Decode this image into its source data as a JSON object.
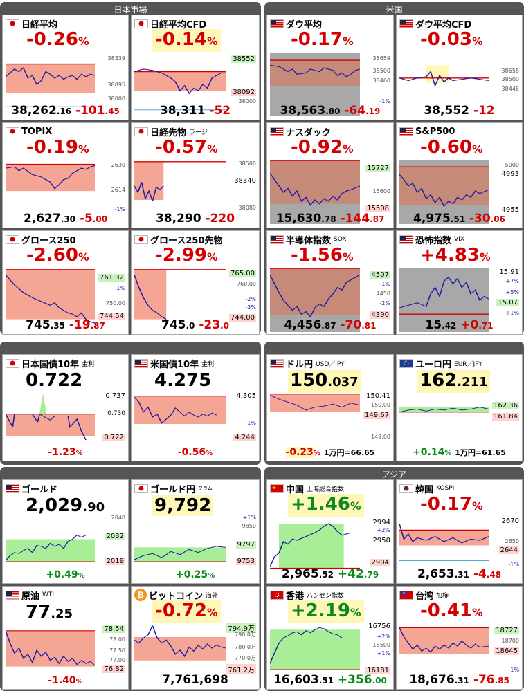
{
  "sections": {
    "japan": "日本市場",
    "us": "米国",
    "asia": "アジア"
  },
  "cards": {
    "nikkei": {
      "name": "日経平均",
      "pct": "-0.26",
      "unit": "%",
      "price_i": "38,262",
      "price_d": ".16",
      "chg_i": "-101",
      "chg_d": ".45",
      "ticks": [
        "38339",
        "38095",
        "38000"
      ]
    },
    "nikkei_cfd": {
      "name": "日経平均CFD",
      "pct": "-0.14",
      "unit": "%",
      "price": "38,311",
      "chg": "-52",
      "ticks": [
        "38552",
        "38092",
        "38000"
      ]
    },
    "dow": {
      "name": "ダウ平均",
      "pct": "-0.17",
      "unit": "%",
      "price_i": "38,563",
      "price_d": ".80",
      "chg_i": "-64",
      "chg_d": ".19",
      "ticks": [
        "38659",
        "38500",
        "38460",
        "-1%"
      ]
    },
    "dow_cfd": {
      "name": "ダウ平均CFD",
      "pct": "-0.03",
      "unit": "%",
      "price": "38,552",
      "chg": "-12",
      "ticks": [
        "38658",
        "38500",
        "38448"
      ]
    },
    "topix": {
      "name": "TOPIX",
      "pct": "-0.19",
      "unit": "%",
      "price_i": "2,627",
      "price_d": ".30",
      "chg_i": "-5",
      "chg_d": ".00",
      "ticks": [
        "2630",
        "2614",
        "-1%"
      ]
    },
    "nikkei_fut": {
      "name": "日経先物",
      "sub": "ラージ",
      "pct": "-0.57",
      "unit": "%",
      "price": "38,290",
      "chg": "-220",
      "ticks": [
        "38500",
        "38340",
        "38080"
      ]
    },
    "nasdaq": {
      "name": "ナスダック",
      "pct": "-0.92",
      "unit": "%",
      "price_i": "15,630",
      "price_d": ".78",
      "chg_i": "-144",
      "chg_d": ".87",
      "ticks": [
        "15727",
        "15600",
        "15508"
      ]
    },
    "sp500": {
      "name": "S&P500",
      "pct": "-0.60",
      "unit": "%",
      "price_i": "4,975",
      "price_d": ".51",
      "chg_i": "-30",
      "chg_d": ".06",
      "ticks": [
        "5000",
        "4993",
        "4955"
      ]
    },
    "growth": {
      "name": "グロース250",
      "pct": "-2.60",
      "unit": "%",
      "price_i": "745",
      "price_d": ".35",
      "chg_i": "-19",
      "chg_d": ".87",
      "ticks": [
        "761.32",
        "-1%",
        "750.00",
        "744.54"
      ]
    },
    "growth_fut": {
      "name": "グロース250先物",
      "pct": "-2.99",
      "unit": "%",
      "price_i": "745",
      "price_d": ".0",
      "chg_i": "-23",
      "chg_d": ".0",
      "ticks": [
        "765.00",
        "760.00",
        "-2%",
        "-3%",
        "744.00"
      ]
    },
    "sox": {
      "name": "半導体指数",
      "sub": "SOX",
      "pct": "-1.56",
      "unit": "%",
      "price_i": "4,456",
      "price_d": ".87",
      "chg_i": "-70",
      "chg_d": ".81",
      "ticks": [
        "4507",
        "-1%",
        "4450",
        "-2%",
        "4390"
      ]
    },
    "vix": {
      "name": "恐怖指数",
      "sub": "VIX",
      "pct": "+4.83",
      "unit": "%",
      "price_i": "15",
      "price_d": ".42",
      "chg_i": "+0",
      "chg_d": ".71",
      "ticks": [
        "15.91",
        "+7%",
        "+5%",
        "15.07",
        "+1%"
      ]
    },
    "jgb": {
      "name": "日本国債10年",
      "sub": "金利",
      "big": "0.722",
      "chg": "-1.23",
      "unit": "%",
      "ticks": [
        "0.737",
        "0.730",
        "0.722"
      ]
    },
    "ust": {
      "name": "米国債10年",
      "sub": "金利",
      "big": "4.275",
      "chg": "-0.56",
      "unit": "%",
      "ticks": [
        "4.305",
        "-1%",
        "4.244"
      ]
    },
    "usdjpy": {
      "name": "ドル円",
      "sub": "USD／JPY",
      "big_i": "150",
      "big_d": ".037",
      "chg": "-0.23",
      "unit": "%",
      "note": "1万円=66.65",
      "ticks": [
        "150.41",
        "150.00",
        "149.67",
        "149.00"
      ]
    },
    "eurjpy": {
      "name": "ユーロ円",
      "sub": "EUR／JPY",
      "big_i": "162",
      "big_d": ".211",
      "chg": "+0.14",
      "unit": "%",
      "note": "1万円=61.65",
      "ticks": [
        "162.36",
        "161.84"
      ]
    },
    "gold": {
      "name": "ゴールド",
      "big_i": "2,029",
      "big_d": ".90",
      "chg": "+0.49",
      "unit": "%",
      "ticks": [
        "2040",
        "2032",
        "2019"
      ]
    },
    "gold_jpy": {
      "name": "ゴールド円",
      "sub": "グラム",
      "big": "9,792",
      "chg": "+0.25",
      "unit": "%",
      "ticks": [
        "+1%",
        "9850",
        "9797",
        "9753"
      ]
    },
    "china": {
      "name": "中国",
      "sub": "上海総合指数",
      "pct": "+1.46",
      "unit": "%",
      "price_i": "2,965",
      "price_d": ".52",
      "chg_i": "+42",
      "chg_d": ".79",
      "ticks": [
        "2994",
        "+2%",
        "2950",
        "2904"
      ]
    },
    "korea": {
      "name": "韓国",
      "sub": "KOSPI",
      "pct": "-0.17",
      "unit": "%",
      "price_i": "2,653",
      "price_d": ".31",
      "chg_i": "-4",
      "chg_d": ".48",
      "ticks": [
        "2670",
        "2650",
        "2644",
        "-1%"
      ]
    },
    "oil": {
      "name": "原油",
      "sub": "WTI",
      "big_i": "77",
      "big_d": ".25",
      "chg": "-1.40",
      "unit": "%",
      "ticks": [
        "78.54",
        "78.00",
        "77.50",
        "77.00",
        "76.82"
      ]
    },
    "btc": {
      "name": "ビットコイン",
      "sub": "海外",
      "pct": "-0.72",
      "unit": "%",
      "price": "7,761,698",
      "ticks": [
        "794.9万",
        "790.0万",
        "780.0万",
        "770.0万",
        "761.2万"
      ]
    },
    "hk": {
      "name": "香港",
      "sub": "ハンセン指数",
      "pct": "+2.19",
      "unit": "%",
      "price_i": "16,603",
      "price_d": ".51",
      "chg_i": "+356",
      "chg_d": ".00",
      "ticks": [
        "16756",
        "+2%",
        "16500",
        "+1%",
        "16181"
      ]
    },
    "taiwan": {
      "name": "台湾",
      "sub": "加権",
      "pct": "-0.41",
      "unit": "%",
      "price_i": "18,676",
      "price_d": ".31",
      "chg_i": "-76",
      "chg_d": ".85",
      "ticks": [
        "18727",
        "18700",
        "18645",
        "-1%"
      ]
    }
  },
  "colors": {
    "up": "#0a8a1a",
    "down": "#d40000",
    "fill_red": "#f4a594",
    "fill_green": "#a8ee96",
    "line": "#1a1aa8",
    "grey": "#a8a8a8"
  }
}
